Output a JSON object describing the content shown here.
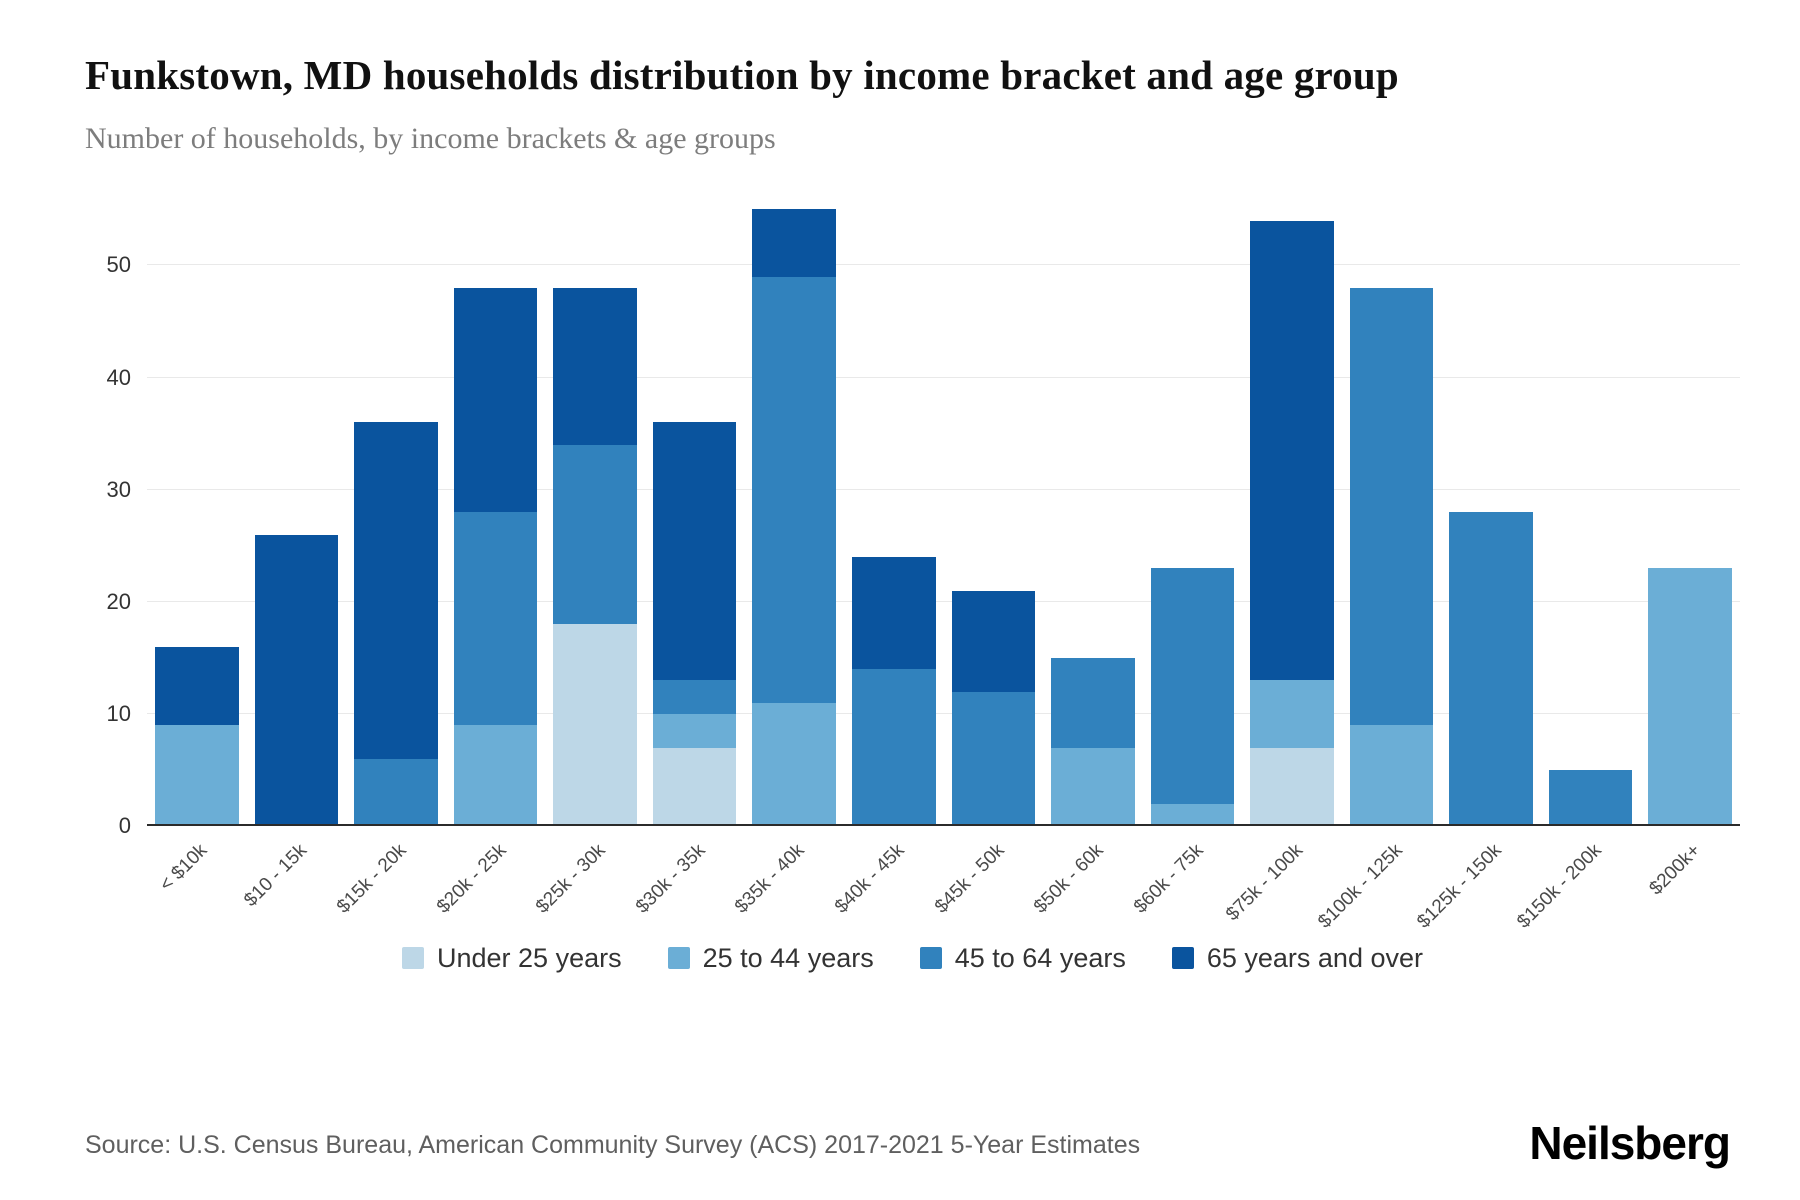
{
  "header": {
    "title": "Funkstown, MD households distribution by income bracket and age group",
    "subtitle": "Number of households, by income brackets & age groups"
  },
  "chart_data": {
    "type": "bar",
    "stacked": true,
    "title": "Funkstown, MD households distribution by income bracket and age group",
    "xlabel": "",
    "ylabel": "Number of households",
    "categories": [
      "< $10k",
      "$10 - 15k",
      "$15k - 20k",
      "$20k - 25k",
      "$25k - 30k",
      "$30k - 35k",
      "$35k - 40k",
      "$40k - 45k",
      "$45k - 50k",
      "$50k - 60k",
      "$60k - 75k",
      "$75k - 100k",
      "$100k - 125k",
      "$125k - 150k",
      "$150k - 200k",
      "$200k+"
    ],
    "series": [
      {
        "name": "Under 25 years",
        "color": "#bdd7e7",
        "values": [
          0,
          0,
          0,
          0,
          18,
          7,
          0,
          0,
          0,
          0,
          0,
          7,
          0,
          0,
          0,
          0
        ]
      },
      {
        "name": "25 to 44 years",
        "color": "#6baed6",
        "values": [
          9,
          0,
          0,
          9,
          0,
          3,
          11,
          0,
          0,
          7,
          2,
          6,
          9,
          0,
          0,
          23
        ]
      },
      {
        "name": "45 to 64 years",
        "color": "#3182bd",
        "values": [
          0,
          0,
          6,
          19,
          16,
          3,
          38,
          14,
          12,
          8,
          21,
          0,
          39,
          28,
          5,
          0
        ]
      },
      {
        "name": "65 years and over",
        "color": "#0a549e",
        "values": [
          7,
          26,
          30,
          20,
          14,
          23,
          6,
          10,
          9,
          0,
          0,
          41,
          0,
          0,
          0,
          0
        ]
      }
    ],
    "totals": [
      16,
      26,
      36,
      48,
      48,
      36,
      55,
      24,
      21,
      15,
      23,
      54,
      48,
      28,
      5,
      23
    ],
    "yticks": [
      0,
      10,
      20,
      30,
      40,
      50
    ],
    "ylim": [
      0,
      56
    ],
    "grid": true,
    "legend_position": "bottom"
  },
  "footer": {
    "source": "Source: U.S. Census Bureau, American Community Survey (ACS) 2017-2021 5-Year Estimates",
    "brand": "Neilsberg"
  }
}
